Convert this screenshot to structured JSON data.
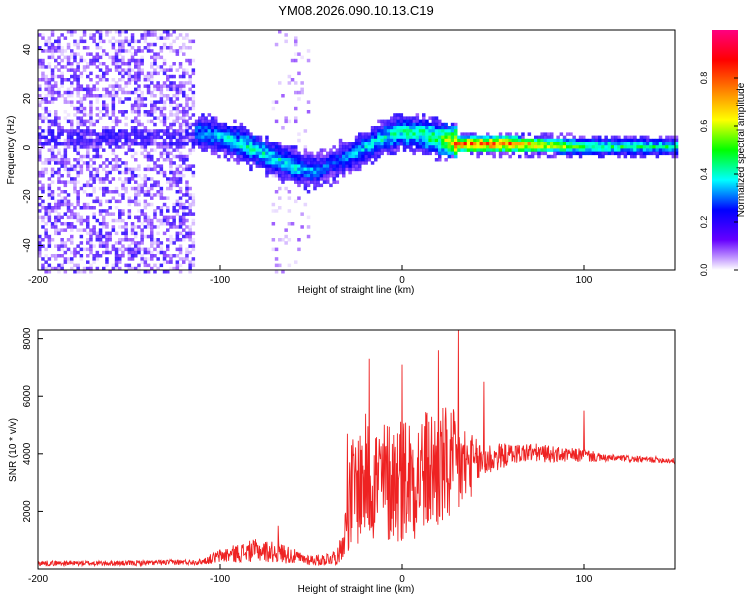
{
  "title": "YM08.2026.090.10.13.C19",
  "chart_data": [
    {
      "type": "heatmap",
      "title": "YM08.2026.090.10.13.C19",
      "xlabel": "Height of straight line (km)",
      "ylabel": "Frequency (Hz)",
      "xlim": [
        -200,
        150
      ],
      "ylim": [
        -50,
        48
      ],
      "x_ticks": [
        -200,
        -100,
        0,
        100
      ],
      "y_ticks": [
        -40,
        -20,
        0,
        20,
        40
      ],
      "colorbar": {
        "label": "Normalized spectral amplitude",
        "range": [
          0,
          1
        ],
        "ticks": [
          0.0,
          0.2,
          0.4,
          0.6,
          0.8
        ],
        "colors": [
          "#ffffff",
          "#6600ff",
          "#0000ff",
          "#00ffff",
          "#00ff00",
          "#ffff00",
          "#ff8000",
          "#ff0000",
          "#ff0080"
        ]
      },
      "noise_region": {
        "x_range": [
          -200,
          -115
        ],
        "amplitude": 0.15
      },
      "signal_track": {
        "x": [
          -115,
          -100,
          -85,
          -70,
          -58,
          -48,
          -40,
          -30,
          -20,
          -10,
          0,
          10,
          20,
          30,
          60,
          100,
          150
        ],
        "freq_hz": [
          7,
          5,
          1,
          -4,
          -8,
          -9,
          -6,
          -3,
          1,
          5,
          7,
          6,
          4,
          2,
          2,
          1,
          1
        ],
        "amplitude": [
          0.35,
          0.4,
          0.45,
          0.42,
          0.4,
          0.35,
          0.3,
          0.35,
          0.4,
          0.42,
          0.45,
          0.5,
          0.55,
          0.85,
          0.85,
          0.5,
          0.45
        ]
      }
    },
    {
      "type": "line",
      "xlabel": "Height of straight line (km)",
      "ylabel": "SNR (10 * v/v)",
      "xlim": [
        -200,
        150
      ],
      "ylim": [
        0,
        8300
      ],
      "x_ticks": [
        -200,
        -100,
        0,
        100
      ],
      "y_ticks": [
        2000,
        4000,
        6000,
        8000
      ],
      "series": [
        {
          "name": "SNR",
          "color": "#ee2222",
          "envelope_x": [
            -200,
            -150,
            -110,
            -100,
            -80,
            -65,
            -55,
            -45,
            -35,
            -30,
            -28,
            -20,
            -10,
            0,
            10,
            20,
            30,
            40,
            50,
            60,
            70,
            80,
            90,
            100,
            110,
            120,
            130,
            140,
            150
          ],
          "envelope_mean": [
            200,
            200,
            250,
            450,
            650,
            550,
            350,
            300,
            450,
            1600,
            2600,
            3200,
            3000,
            3200,
            3300,
            3500,
            3500,
            3650,
            3850,
            4000,
            4050,
            4000,
            3950,
            3950,
            3850,
            3850,
            3800,
            3800,
            3750
          ],
          "envelope_spread": [
            90,
            90,
            100,
            250,
            400,
            350,
            200,
            200,
            300,
            1000,
            2000,
            2200,
            2200,
            2300,
            2200,
            2300,
            2000,
            900,
            550,
            350,
            350,
            300,
            250,
            250,
            130,
            120,
            110,
            110,
            100
          ],
          "peaks": [
            [
              -30,
              4700
            ],
            [
              -18,
              7300
            ],
            [
              0,
              7100
            ],
            [
              20,
              7600
            ],
            [
              31,
              8300
            ],
            [
              45,
              6500
            ],
            [
              100,
              5500
            ],
            [
              -68,
              1500
            ]
          ]
        }
      ]
    }
  ]
}
